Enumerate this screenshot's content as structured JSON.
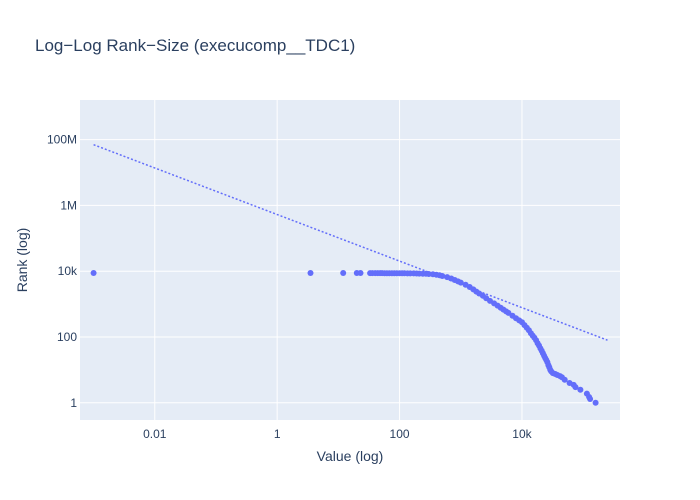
{
  "chart_data": {
    "type": "scatter",
    "title": "Log−Log Rank−Size (execucomp__TDC1)",
    "xlabel": "Value (log)",
    "ylabel": "Rank (log)",
    "xscale": "log",
    "yscale": "log",
    "xlim": [
      0.0006,
      400000
    ],
    "ylim": [
      0.3,
      1600000000
    ],
    "x_ticks": [
      {
        "value": 0.01,
        "label": "0.01"
      },
      {
        "value": 1,
        "label": "1"
      },
      {
        "value": 100,
        "label": "100"
      },
      {
        "value": 10000,
        "label": "10k"
      }
    ],
    "y_ticks": [
      {
        "value": 1,
        "label": "1"
      },
      {
        "value": 100,
        "label": "100"
      },
      {
        "value": 10000,
        "label": "10k"
      },
      {
        "value": 1000000,
        "label": "1M"
      },
      {
        "value": 100000000,
        "label": "100M"
      }
    ],
    "grid": true,
    "colors": {
      "marker": "#636efa",
      "plot_bg": "#e5ecf6",
      "grid": "#ffffff",
      "text": "#2a3f5f"
    },
    "series": [
      {
        "mode": "markers",
        "points": [
          [
            0.001,
            8800
          ],
          [
            3.5,
            8800
          ],
          [
            12,
            8800
          ],
          [
            20,
            8800
          ],
          [
            23,
            8800
          ],
          [
            33,
            8780
          ],
          [
            36,
            8770
          ],
          [
            40,
            8760
          ],
          [
            44,
            8750
          ],
          [
            48,
            8740
          ],
          [
            52,
            8730
          ],
          [
            57,
            8720
          ],
          [
            62,
            8710
          ],
          [
            68,
            8700
          ],
          [
            75,
            8690
          ],
          [
            82,
            8680
          ],
          [
            90,
            8670
          ],
          [
            100,
            8650
          ],
          [
            110,
            8640
          ],
          [
            120,
            8620
          ],
          [
            135,
            8600
          ],
          [
            150,
            8580
          ],
          [
            170,
            8550
          ],
          [
            190,
            8520
          ],
          [
            210,
            8480
          ],
          [
            240,
            8420
          ],
          [
            270,
            8350
          ],
          [
            300,
            8250
          ],
          [
            350,
            8050
          ],
          [
            400,
            7800
          ],
          [
            450,
            7500
          ],
          [
            500,
            7150
          ],
          [
            600,
            6600
          ],
          [
            700,
            6000
          ],
          [
            800,
            5400
          ],
          [
            900,
            4900
          ],
          [
            1000,
            4500
          ],
          [
            1200,
            3900
          ],
          [
            1400,
            3300
          ],
          [
            1600,
            2800
          ],
          [
            1800,
            2400
          ],
          [
            2000,
            2100
          ],
          [
            2300,
            1800
          ],
          [
            2600,
            1500
          ],
          [
            3000,
            1250
          ],
          [
            3500,
            1050
          ],
          [
            4000,
            900
          ],
          [
            4500,
            780
          ],
          [
            5000,
            680
          ],
          [
            5500,
            600
          ],
          [
            6000,
            540
          ],
          [
            7000,
            440
          ],
          [
            8000,
            370
          ],
          [
            9000,
            320
          ],
          [
            10000,
            280
          ],
          [
            11000,
            230
          ],
          [
            12000,
            190
          ],
          [
            13000,
            160
          ],
          [
            14000,
            130
          ],
          [
            15000,
            110
          ],
          [
            16000,
            95
          ],
          [
            17000,
            80
          ],
          [
            18000,
            65
          ],
          [
            19000,
            55
          ],
          [
            20000,
            45
          ],
          [
            21000,
            38
          ],
          [
            22000,
            32
          ],
          [
            23000,
            27
          ],
          [
            24000,
            23
          ],
          [
            25000,
            20
          ],
          [
            26000,
            17
          ],
          [
            27000,
            14
          ],
          [
            28000,
            12
          ],
          [
            29000,
            10
          ],
          [
            30000,
            9
          ],
          [
            32000,
            8
          ],
          [
            35000,
            7.5
          ],
          [
            38000,
            7
          ],
          [
            42000,
            6.5
          ],
          [
            45000,
            6
          ],
          [
            50000,
            5
          ],
          [
            60000,
            4
          ],
          [
            70000,
            3.5
          ],
          [
            75000,
            3
          ],
          [
            90000,
            2.5
          ],
          [
            115000,
            1.9
          ],
          [
            125000,
            1.5
          ],
          [
            130000,
            1.3
          ],
          [
            160000,
            1
          ]
        ]
      },
      {
        "mode": "lines",
        "dash": "dot",
        "points": [
          [
            0.001,
            70000000
          ],
          [
            250000,
            80
          ]
        ]
      }
    ]
  }
}
